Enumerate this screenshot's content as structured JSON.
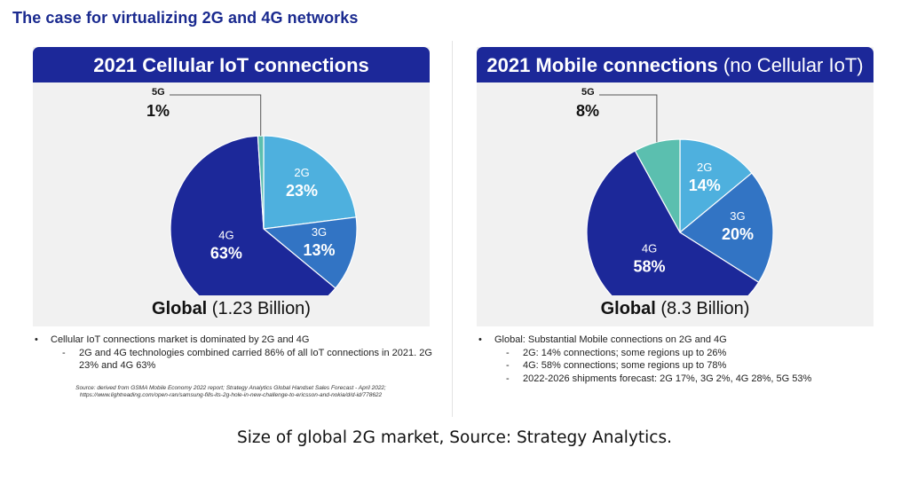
{
  "slide_title": "The case for virtualizing 2G and 4G networks",
  "caption": "Size of global 2G market, Source: Strategy Analytics.",
  "colors": {
    "header_bg": "#1c2899",
    "title": "#1a2a8f",
    "2G": "#4eb0de",
    "3G": "#3274c4",
    "4G": "#1c2899",
    "5G": "#5bbfaf"
  },
  "chart_data": [
    {
      "type": "pie",
      "title": "2021 Cellular IoT connections",
      "title_suffix": "",
      "total_label_bold": "Global",
      "total_label_rest": " (1.23 Billion)",
      "slices": [
        {
          "name": "2G",
          "value": 23,
          "label": "23%"
        },
        {
          "name": "3G",
          "value": 13,
          "label": "13%"
        },
        {
          "name": "4G",
          "value": 63,
          "label": "63%"
        },
        {
          "name": "5G",
          "value": 1,
          "label": "1%"
        }
      ],
      "callout": "5G"
    },
    {
      "type": "pie",
      "title": "2021 Mobile connections",
      "title_suffix": " (no Cellular IoT)",
      "total_label_bold": "Global",
      "total_label_rest": " (8.3 Billion)",
      "slices": [
        {
          "name": "2G",
          "value": 14,
          "label": "14%"
        },
        {
          "name": "3G",
          "value": 20,
          "label": "20%"
        },
        {
          "name": "4G",
          "value": 58,
          "label": "58%"
        },
        {
          "name": "5G",
          "value": 8,
          "label": "8%"
        }
      ],
      "callout": "5G"
    }
  ],
  "left_notes": {
    "bullet": "Cellular IoT connections market is dominated by 2G and 4G",
    "sub": [
      "2G and 4G technologies combined carried 86% of all IoT connections in 2021. 2G 23% and 4G 63%"
    ],
    "source_line1": "Source: derived from GSMA Mobile Economy 2022 report; Strategy Analytics Global Handset Sales Forecast - April 2022;",
    "source_line2": "https://www.lightreading.com/open-ran/samsung-fills-its-2g-hole-in-new-challenge-to-ericsson-and-nokia/d/d-id/778622"
  },
  "right_notes": {
    "bullet": "Global: Substantial Mobile connections on 2G and 4G",
    "sub": [
      "2G: 14% connections; some regions up to 26%",
      "4G: 58% connections; some regions up to 78%",
      "2022-2026 shipments forecast: 2G 17%, 3G 2%, 4G 28%, 5G 53%"
    ]
  }
}
